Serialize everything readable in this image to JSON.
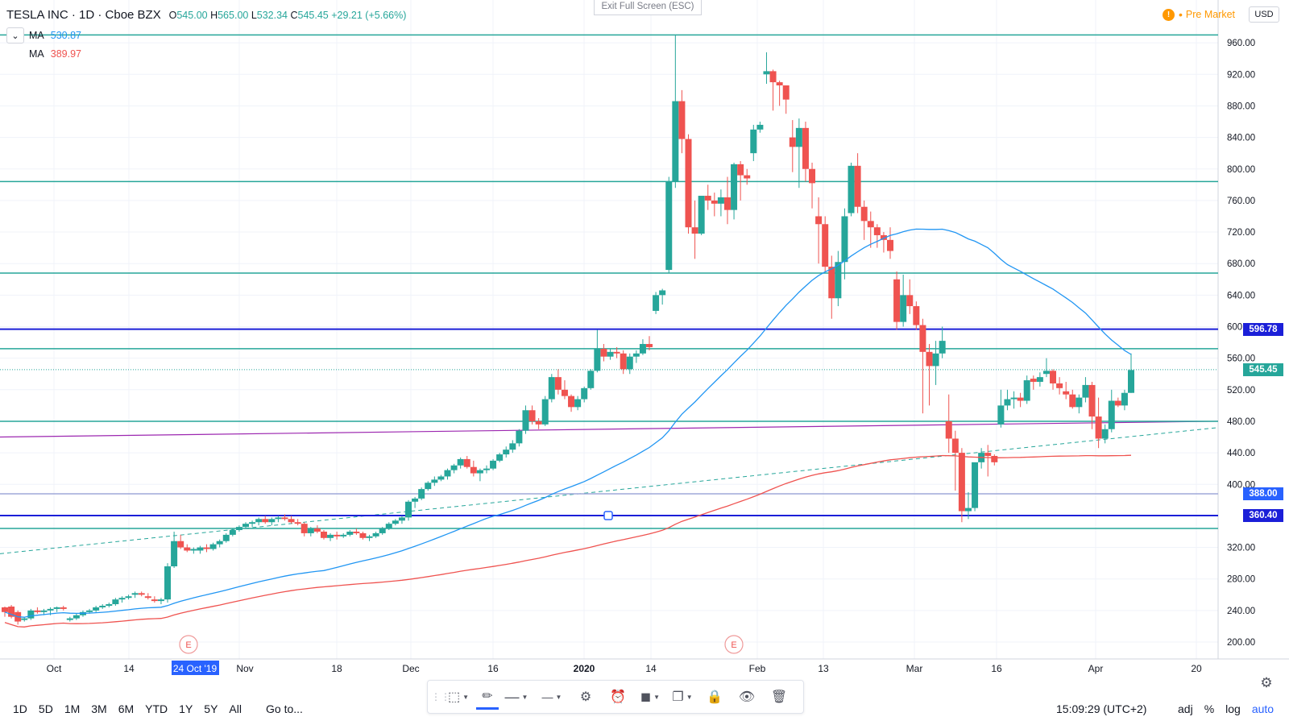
{
  "header": {
    "symbol": "TESLA INC · 1D · Cboe BZX",
    "open_label": "O",
    "open": "545.00",
    "high_label": "H",
    "high": "565.00",
    "low_label": "L",
    "low": "532.34",
    "close_label": "C",
    "close": "545.45",
    "change": "+29.21 (+5.66%)"
  },
  "indicators": [
    {
      "label": "MA",
      "value": "530.87",
      "color": "#2196f3"
    },
    {
      "label": "MA",
      "value": "389.97",
      "color": "#ef5350"
    }
  ],
  "exit_fullscreen": "Exit Full Screen (ESC)",
  "premarket": "Pre Market",
  "premarket_icon": "!",
  "currency": "USD",
  "price_axis_labels": [
    "960.00",
    "920.00",
    "880.00",
    "840.00",
    "800.00",
    "760.00",
    "720.00",
    "680.00",
    "640.00",
    "600.00",
    "560.00",
    "520.00",
    "480.00",
    "440.00",
    "400.00",
    "320.00",
    "280.00",
    "240.00",
    "200.00"
  ],
  "time_axis_labels": [
    "Oct",
    "14",
    "24 Oct '19",
    "Nov",
    "18",
    "Dec",
    "16",
    "2020",
    "14",
    "Feb",
    "13",
    "Mar",
    "16",
    "Apr",
    "20"
  ],
  "highlighted_date": "24 Oct '19",
  "price_tags": [
    {
      "value": "596.78",
      "price": 596.78,
      "color": "#1b1fd8"
    },
    {
      "value": "545.45",
      "price": 545.45,
      "color": "#26a69a"
    },
    {
      "value": "388.00",
      "price": 388.0,
      "color": "#2962ff"
    },
    {
      "value": "360.40",
      "price": 360.4,
      "color": "#1b1fd8"
    }
  ],
  "earnings_marker": "E",
  "bottom": {
    "ranges": [
      "1D",
      "5D",
      "1M",
      "3M",
      "6M",
      "YTD",
      "1Y",
      "5Y",
      "All"
    ],
    "goto": "Go to...",
    "clock": "15:09:29 (UTC+2)",
    "adj": "adj",
    "percent": "%",
    "log": "log",
    "auto": "auto"
  },
  "toolbar_icons": [
    "selection-frame-icon",
    "pencil-icon",
    "line-style-icon",
    "line-width-icon",
    "settings-gear-icon",
    "alert-clock-icon",
    "fill-color-icon",
    "clone-icon",
    "lock-icon",
    "eye-icon",
    "trash-icon"
  ],
  "colors": {
    "up": "#26a69a",
    "down": "#ef5350",
    "grid": "#f0f3fa",
    "hline": "#26a69a",
    "level": "#1b1fd8",
    "ma50": "#2196f3",
    "ma200": "#ef5350",
    "trend_purple": "#9c27b0"
  },
  "chart_data": {
    "type": "candlestick",
    "ylim": [
      180,
      985
    ],
    "series": [
      {
        "name": "MA",
        "value": 530.87
      },
      {
        "name": "MA",
        "value": 389.97
      }
    ],
    "candles": [
      [
        244,
        245,
        232,
        238
      ],
      [
        245,
        247,
        230,
        232
      ],
      [
        238,
        240,
        222,
        226
      ],
      [
        228,
        232,
        226,
        230
      ],
      [
        230,
        242,
        228,
        240
      ],
      [
        240,
        244,
        236,
        238
      ],
      [
        238,
        242,
        234,
        240
      ],
      [
        240,
        244,
        234,
        242
      ],
      [
        242,
        245,
        238,
        244
      ],
      [
        244,
        246,
        240,
        242
      ],
      [
        228,
        232,
        226,
        230
      ],
      [
        230,
        236,
        228,
        234
      ],
      [
        234,
        240,
        232,
        238
      ],
      [
        238,
        242,
        236,
        240
      ],
      [
        240,
        246,
        238,
        244
      ],
      [
        244,
        248,
        242,
        246
      ],
      [
        246,
        250,
        244,
        248
      ],
      [
        248,
        256,
        246,
        254
      ],
      [
        254,
        258,
        250,
        256
      ],
      [
        256,
        260,
        254,
        258
      ],
      [
        260,
        264,
        256,
        262
      ],
      [
        262,
        264,
        258,
        260
      ],
      [
        258,
        262,
        254,
        256
      ],
      [
        254,
        258,
        250,
        252
      ],
      [
        252,
        256,
        248,
        254
      ],
      [
        254,
        300,
        250,
        296
      ],
      [
        296,
        340,
        294,
        328
      ],
      [
        328,
        336,
        318,
        320
      ],
      [
        320,
        324,
        314,
        316
      ],
      [
        316,
        320,
        312,
        318
      ],
      [
        316,
        322,
        312,
        320
      ],
      [
        320,
        324,
        314,
        318
      ],
      [
        318,
        326,
        316,
        324
      ],
      [
        324,
        330,
        320,
        328
      ],
      [
        328,
        338,
        326,
        336
      ],
      [
        336,
        344,
        334,
        342
      ],
      [
        342,
        348,
        340,
        346
      ],
      [
        346,
        352,
        344,
        350
      ],
      [
        350,
        354,
        346,
        352
      ],
      [
        352,
        358,
        348,
        356
      ],
      [
        356,
        360,
        350,
        352
      ],
      [
        352,
        358,
        348,
        356
      ],
      [
        356,
        360,
        352,
        358
      ],
      [
        358,
        362,
        354,
        356
      ],
      [
        356,
        360,
        350,
        352
      ],
      [
        352,
        356,
        348,
        350
      ],
      [
        350,
        352,
        334,
        338
      ],
      [
        338,
        346,
        334,
        344
      ],
      [
        344,
        348,
        338,
        340
      ],
      [
        340,
        342,
        330,
        332
      ],
      [
        332,
        338,
        328,
        336
      ],
      [
        336,
        340,
        330,
        334
      ],
      [
        334,
        338,
        332,
        336
      ],
      [
        336,
        342,
        334,
        340
      ],
      [
        340,
        344,
        336,
        338
      ],
      [
        338,
        340,
        330,
        332
      ],
      [
        332,
        336,
        328,
        334
      ],
      [
        334,
        340,
        332,
        338
      ],
      [
        338,
        346,
        336,
        344
      ],
      [
        344,
        352,
        342,
        350
      ],
      [
        350,
        356,
        348,
        354
      ],
      [
        354,
        360,
        350,
        358
      ],
      [
        358,
        380,
        354,
        378
      ],
      [
        378,
        384,
        370,
        382
      ],
      [
        382,
        396,
        380,
        394
      ],
      [
        394,
        404,
        392,
        402
      ],
      [
        402,
        410,
        398,
        406
      ],
      [
        406,
        412,
        404,
        410
      ],
      [
        410,
        420,
        406,
        418
      ],
      [
        418,
        426,
        414,
        424
      ],
      [
        424,
        434,
        420,
        432
      ],
      [
        432,
        436,
        420,
        422
      ],
      [
        422,
        430,
        410,
        414
      ],
      [
        414,
        420,
        404,
        418
      ],
      [
        418,
        424,
        414,
        420
      ],
      [
        420,
        432,
        418,
        430
      ],
      [
        430,
        440,
        428,
        438
      ],
      [
        438,
        448,
        434,
        444
      ],
      [
        444,
        456,
        440,
        452
      ],
      [
        452,
        470,
        448,
        468
      ],
      [
        468,
        500,
        464,
        494
      ],
      [
        494,
        500,
        476,
        480
      ],
      [
        480,
        484,
        470,
        476
      ],
      [
        476,
        512,
        474,
        508
      ],
      [
        508,
        540,
        504,
        536
      ],
      [
        536,
        546,
        514,
        520
      ],
      [
        520,
        532,
        508,
        512
      ],
      [
        512,
        514,
        492,
        498
      ],
      [
        498,
        512,
        494,
        508
      ],
      [
        508,
        524,
        504,
        522
      ],
      [
        522,
        546,
        520,
        544
      ],
      [
        544,
        596,
        542,
        572
      ],
      [
        572,
        578,
        556,
        562
      ],
      [
        562,
        572,
        558,
        568
      ],
      [
        568,
        574,
        560,
        566
      ],
      [
        566,
        570,
        540,
        546
      ],
      [
        546,
        566,
        540,
        562
      ],
      [
        562,
        570,
        554,
        566
      ],
      [
        566,
        584,
        564,
        578
      ],
      [
        578,
        588,
        570,
        574
      ],
      [
        620,
        644,
        616,
        640
      ],
      [
        640,
        648,
        628,
        646
      ],
      [
        672,
        790,
        668,
        784
      ],
      [
        784,
        970,
        776,
        886
      ],
      [
        886,
        900,
        820,
        838
      ],
      [
        838,
        844,
        718,
        726
      ],
      [
        726,
        760,
        686,
        718
      ],
      [
        718,
        764,
        716,
        766
      ],
      [
        766,
        780,
        748,
        760
      ],
      [
        760,
        770,
        740,
        756
      ],
      [
        756,
        774,
        740,
        764
      ],
      [
        764,
        790,
        730,
        748
      ],
      [
        748,
        808,
        736,
        806
      ],
      [
        806,
        810,
        760,
        792
      ],
      [
        792,
        800,
        780,
        788
      ],
      [
        820,
        856,
        810,
        850
      ],
      [
        850,
        860,
        846,
        856
      ],
      [
        920,
        948,
        908,
        924
      ],
      [
        924,
        926,
        874,
        910
      ],
      [
        910,
        912,
        880,
        906
      ],
      [
        906,
        900,
        870,
        888
      ],
      [
        840,
        862,
        796,
        828
      ],
      [
        828,
        864,
        776,
        852
      ],
      [
        852,
        860,
        784,
        800
      ],
      [
        800,
        808,
        750,
        782
      ],
      [
        740,
        764,
        680,
        730
      ],
      [
        730,
        740,
        670,
        676
      ],
      [
        676,
        690,
        610,
        636
      ],
      [
        636,
        696,
        626,
        682
      ],
      [
        682,
        750,
        660,
        740
      ],
      [
        744,
        808,
        740,
        804
      ],
      [
        804,
        820,
        744,
        752
      ],
      [
        752,
        760,
        710,
        734
      ],
      [
        734,
        746,
        700,
        726
      ],
      [
        726,
        730,
        700,
        716
      ],
      [
        716,
        720,
        694,
        710
      ],
      [
        710,
        726,
        686,
        696
      ],
      [
        660,
        670,
        596,
        606
      ],
      [
        606,
        666,
        600,
        640
      ],
      [
        640,
        660,
        616,
        626
      ],
      [
        626,
        632,
        596,
        602
      ],
      [
        602,
        610,
        490,
        568
      ],
      [
        568,
        578,
        500,
        550
      ],
      [
        550,
        582,
        526,
        566
      ],
      [
        566,
        600,
        560,
        582
      ],
      [
        480,
        514,
        440,
        458
      ],
      [
        458,
        468,
        392,
        440
      ],
      [
        440,
        446,
        352,
        366
      ],
      [
        366,
        390,
        356,
        370
      ],
      [
        370,
        426,
        366,
        428
      ],
      [
        428,
        446,
        420,
        440
      ],
      [
        440,
        450,
        410,
        436
      ],
      [
        436,
        438,
        424,
        428
      ],
      [
        476,
        520,
        472,
        500
      ],
      [
        500,
        520,
        494,
        508
      ],
      [
        508,
        518,
        496,
        510
      ],
      [
        510,
        516,
        498,
        506
      ],
      [
        506,
        538,
        502,
        532
      ],
      [
        534,
        538,
        520,
        530
      ],
      [
        530,
        542,
        524,
        536
      ],
      [
        540,
        560,
        536,
        544
      ],
      [
        544,
        546,
        520,
        528
      ],
      [
        528,
        536,
        514,
        522
      ],
      [
        518,
        530,
        508,
        514
      ],
      [
        514,
        520,
        496,
        498
      ],
      [
        498,
        514,
        490,
        510
      ],
      [
        510,
        536,
        504,
        526
      ],
      [
        526,
        530,
        470,
        486
      ],
      [
        486,
        510,
        446,
        458
      ],
      [
        458,
        476,
        452,
        470
      ],
      [
        470,
        520,
        466,
        506
      ],
      [
        506,
        510,
        498,
        500
      ],
      [
        500,
        520,
        494,
        516
      ],
      [
        516,
        566,
        516,
        545
      ]
    ],
    "horizontal_lines": [
      970,
      784,
      668,
      596.78,
      572,
      545.45,
      480,
      388,
      360.4,
      344
    ],
    "ma_fast": "MA 530.87",
    "ma_slow": "MA 389.97"
  }
}
